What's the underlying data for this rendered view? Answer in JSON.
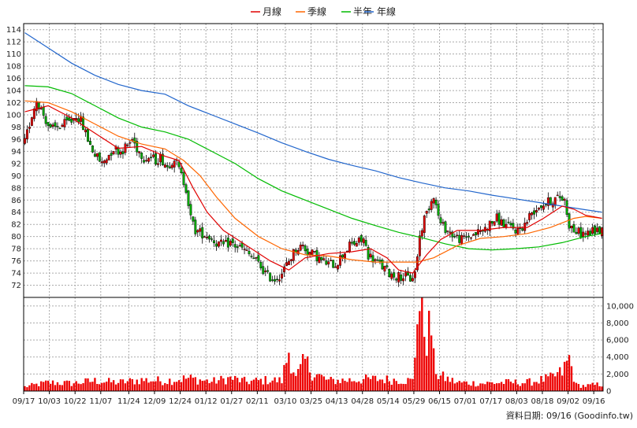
{
  "chart_data": {
    "type": "candlestick",
    "legend": [
      {
        "name": "月線",
        "color": "#e00000"
      },
      {
        "name": "季線",
        "color": "#ff6600"
      },
      {
        "name": "半年",
        "color": "#00bb00"
      },
      {
        "name": "年線",
        "color": "#2266cc"
      }
    ],
    "y_price": {
      "min": 70,
      "max": 115,
      "ticks": [
        72,
        74,
        76,
        78,
        80,
        82,
        84,
        86,
        88,
        90,
        92,
        94,
        96,
        98,
        100,
        102,
        104,
        106,
        108,
        110,
        112,
        114
      ]
    },
    "y_volume": {
      "min": 0,
      "max": 11000,
      "ticks": [
        0,
        2000,
        4000,
        6000,
        8000,
        10000
      ],
      "tick_labels": [
        "0",
        "2,000",
        "4,000",
        "6,000",
        "8,000",
        "10,000"
      ]
    },
    "x_tick_labels": [
      "09/17",
      "10/03",
      "10/22",
      "11/07",
      "11/24",
      "12/09",
      "12/24",
      "01/12",
      "01/27",
      "02/11",
      "03/10",
      "03/25",
      "04/13",
      "04/28",
      "05/14",
      "05/29",
      "06/15",
      "07/01",
      "07/17",
      "08/03",
      "08/18",
      "09/02",
      "09/16"
    ],
    "x_tick_index": [
      0,
      11,
      22,
      33,
      45,
      56,
      67,
      78,
      89,
      100,
      112,
      123,
      134,
      145,
      156,
      167,
      178,
      189,
      200,
      211,
      222,
      233,
      244
    ],
    "num_days": 248,
    "price_anchors": [
      [
        0,
        95.5
      ],
      [
        3,
        100
      ],
      [
        5,
        102.5
      ],
      [
        8,
        100
      ],
      [
        11,
        97.5
      ],
      [
        14,
        98
      ],
      [
        17,
        98.5
      ],
      [
        20,
        99
      ],
      [
        22,
        100
      ],
      [
        24,
        99
      ],
      [
        26,
        97
      ],
      [
        28,
        95
      ],
      [
        30,
        93.5
      ],
      [
        33,
        92
      ],
      [
        35,
        93
      ],
      [
        38,
        94.5
      ],
      [
        41,
        94
      ],
      [
        44,
        95
      ],
      [
        46,
        96
      ],
      [
        48,
        94.5
      ],
      [
        51,
        93
      ],
      [
        54,
        93
      ],
      [
        56,
        92.5
      ],
      [
        58,
        93
      ],
      [
        61,
        91.5
      ],
      [
        64,
        93
      ],
      [
        66,
        91
      ],
      [
        69,
        88
      ],
      [
        71,
        83
      ],
      [
        73,
        81
      ],
      [
        76,
        80.5
      ],
      [
        79,
        80
      ],
      [
        82,
        79
      ],
      [
        85,
        78.5
      ],
      [
        88,
        79
      ],
      [
        90,
        78.5
      ],
      [
        93,
        78
      ],
      [
        96,
        77
      ],
      [
        99,
        76
      ],
      [
        101,
        75
      ],
      [
        104,
        73.5
      ],
      [
        107,
        73
      ],
      [
        110,
        74
      ],
      [
        113,
        76
      ],
      [
        116,
        78
      ],
      [
        119,
        78.5
      ],
      [
        121,
        77.5
      ],
      [
        124,
        77
      ],
      [
        127,
        76
      ],
      [
        130,
        75.5
      ],
      [
        133,
        75.5
      ],
      [
        136,
        77
      ],
      [
        139,
        78.5
      ],
      [
        142,
        79
      ],
      [
        145,
        79.5
      ],
      [
        147,
        77
      ],
      [
        150,
        76
      ],
      [
        153,
        75
      ],
      [
        156,
        74
      ],
      [
        159,
        73.5
      ],
      [
        162,
        73.5
      ],
      [
        165,
        73
      ],
      [
        167,
        74
      ],
      [
        169,
        80
      ],
      [
        171,
        83
      ],
      [
        173,
        85
      ],
      [
        175,
        87
      ],
      [
        176,
        85
      ],
      [
        178,
        82
      ],
      [
        181,
        81
      ],
      [
        184,
        80
      ],
      [
        187,
        79.5
      ],
      [
        190,
        80
      ],
      [
        193,
        80.5
      ],
      [
        196,
        81
      ],
      [
        199,
        82
      ],
      [
        202,
        83
      ],
      [
        205,
        82
      ],
      [
        208,
        81.5
      ],
      [
        211,
        81
      ],
      [
        214,
        82
      ],
      [
        217,
        84
      ],
      [
        220,
        85
      ],
      [
        223,
        85.5
      ],
      [
        226,
        86
      ],
      [
        229,
        86.5
      ],
      [
        231,
        86
      ],
      [
        233,
        82
      ],
      [
        235,
        81
      ],
      [
        238,
        80.5
      ],
      [
        241,
        80.5
      ],
      [
        244,
        81
      ],
      [
        247,
        81
      ]
    ],
    "volume_anchors": [
      [
        0,
        500
      ],
      [
        10,
        1000
      ],
      [
        20,
        900
      ],
      [
        30,
        1200
      ],
      [
        40,
        1000
      ],
      [
        50,
        1300
      ],
      [
        60,
        1200
      ],
      [
        70,
        1500
      ],
      [
        80,
        1100
      ],
      [
        88,
        1500
      ],
      [
        95,
        1100
      ],
      [
        105,
        1300
      ],
      [
        110,
        1200
      ],
      [
        113,
        4800
      ],
      [
        116,
        1500
      ],
      [
        120,
        3500
      ],
      [
        123,
        2200
      ],
      [
        130,
        1200
      ],
      [
        140,
        1300
      ],
      [
        150,
        1400
      ],
      [
        160,
        1300
      ],
      [
        166,
        1200
      ],
      [
        167,
        4500
      ],
      [
        168,
        10500
      ],
      [
        170,
        8800
      ],
      [
        172,
        6500
      ],
      [
        174,
        7500
      ],
      [
        175,
        3500
      ],
      [
        177,
        1800
      ],
      [
        180,
        1500
      ],
      [
        185,
        1000
      ],
      [
        195,
        900
      ],
      [
        205,
        1000
      ],
      [
        215,
        1000
      ],
      [
        225,
        1500
      ],
      [
        230,
        2200
      ],
      [
        233,
        3800
      ],
      [
        236,
        700
      ],
      [
        240,
        600
      ],
      [
        247,
        800
      ]
    ],
    "moving_averages": [
      {
        "name": "年線",
        "color": "#2266cc",
        "points": [
          [
            0,
            113.5
          ],
          [
            10,
            111
          ],
          [
            20,
            108.5
          ],
          [
            30,
            106.5
          ],
          [
            40,
            105
          ],
          [
            50,
            104
          ],
          [
            60,
            103.4
          ],
          [
            70,
            101.5
          ],
          [
            80,
            100
          ],
          [
            90,
            98.5
          ],
          [
            100,
            97
          ],
          [
            110,
            95.4
          ],
          [
            120,
            94
          ],
          [
            130,
            92.7
          ],
          [
            140,
            91.7
          ],
          [
            150,
            90.8
          ],
          [
            160,
            89.7
          ],
          [
            170,
            88.8
          ],
          [
            180,
            88
          ],
          [
            190,
            87.5
          ],
          [
            200,
            86.8
          ],
          [
            210,
            86.2
          ],
          [
            220,
            85.6
          ],
          [
            230,
            85
          ],
          [
            240,
            84.4
          ],
          [
            247,
            84
          ]
        ]
      },
      {
        "name": "半年",
        "color": "#00bb00",
        "points": [
          [
            0,
            104.8
          ],
          [
            10,
            104.6
          ],
          [
            20,
            103.5
          ],
          [
            30,
            101.5
          ],
          [
            40,
            99.5
          ],
          [
            50,
            98
          ],
          [
            60,
            97.2
          ],
          [
            70,
            96
          ],
          [
            80,
            94
          ],
          [
            90,
            92
          ],
          [
            100,
            89.5
          ],
          [
            110,
            87.5
          ],
          [
            120,
            86
          ],
          [
            130,
            84.5
          ],
          [
            140,
            83
          ],
          [
            150,
            81.8
          ],
          [
            160,
            80.7
          ],
          [
            170,
            79.8
          ],
          [
            180,
            78.8
          ],
          [
            190,
            78
          ],
          [
            200,
            77.8
          ],
          [
            210,
            78
          ],
          [
            220,
            78.3
          ],
          [
            230,
            79
          ],
          [
            240,
            80
          ],
          [
            247,
            80.5
          ]
        ]
      },
      {
        "name": "季線",
        "color": "#ff6600",
        "points": [
          [
            0,
            102.3
          ],
          [
            10,
            102
          ],
          [
            20,
            100.5
          ],
          [
            30,
            98.5
          ],
          [
            40,
            96.5
          ],
          [
            50,
            95.2
          ],
          [
            60,
            94.4
          ],
          [
            68,
            92.5
          ],
          [
            75,
            90
          ],
          [
            82,
            86.5
          ],
          [
            90,
            83
          ],
          [
            100,
            80
          ],
          [
            110,
            78
          ],
          [
            120,
            77
          ],
          [
            130,
            76.8
          ],
          [
            140,
            76.2
          ],
          [
            150,
            75.8
          ],
          [
            160,
            75.8
          ],
          [
            168,
            75.8
          ],
          [
            175,
            76.5
          ],
          [
            185,
            78.5
          ],
          [
            195,
            79.7
          ],
          [
            205,
            80
          ],
          [
            215,
            80.5
          ],
          [
            225,
            81.5
          ],
          [
            235,
            83
          ],
          [
            240,
            83.3
          ],
          [
            247,
            83
          ]
        ]
      },
      {
        "name": "月線",
        "color": "#e00000",
        "points": [
          [
            0,
            100.5
          ],
          [
            10,
            101.5
          ],
          [
            20,
            99.5
          ],
          [
            30,
            97
          ],
          [
            40,
            94.5
          ],
          [
            50,
            94.8
          ],
          [
            60,
            93.2
          ],
          [
            66,
            92.5
          ],
          [
            72,
            88
          ],
          [
            78,
            84
          ],
          [
            85,
            81
          ],
          [
            95,
            78.5
          ],
          [
            105,
            76
          ],
          [
            113,
            74.5
          ],
          [
            120,
            76.5
          ],
          [
            130,
            77.2
          ],
          [
            140,
            77.5
          ],
          [
            148,
            78
          ],
          [
            155,
            76.5
          ],
          [
            160,
            74.5
          ],
          [
            166,
            74
          ],
          [
            172,
            77
          ],
          [
            178,
            79.5
          ],
          [
            185,
            81
          ],
          [
            195,
            81
          ],
          [
            205,
            81.5
          ],
          [
            215,
            81.5
          ],
          [
            222,
            83
          ],
          [
            230,
            85
          ],
          [
            235,
            84.5
          ],
          [
            240,
            83.5
          ],
          [
            247,
            83
          ]
        ]
      }
    ]
  },
  "footer": {
    "credit": "資料日期: 09/16 (Goodinfo.tw)"
  },
  "colors": {
    "up": "#e00000",
    "down": "#00aa00",
    "volume": "#ee0000",
    "grid": "#aaaaaa"
  }
}
